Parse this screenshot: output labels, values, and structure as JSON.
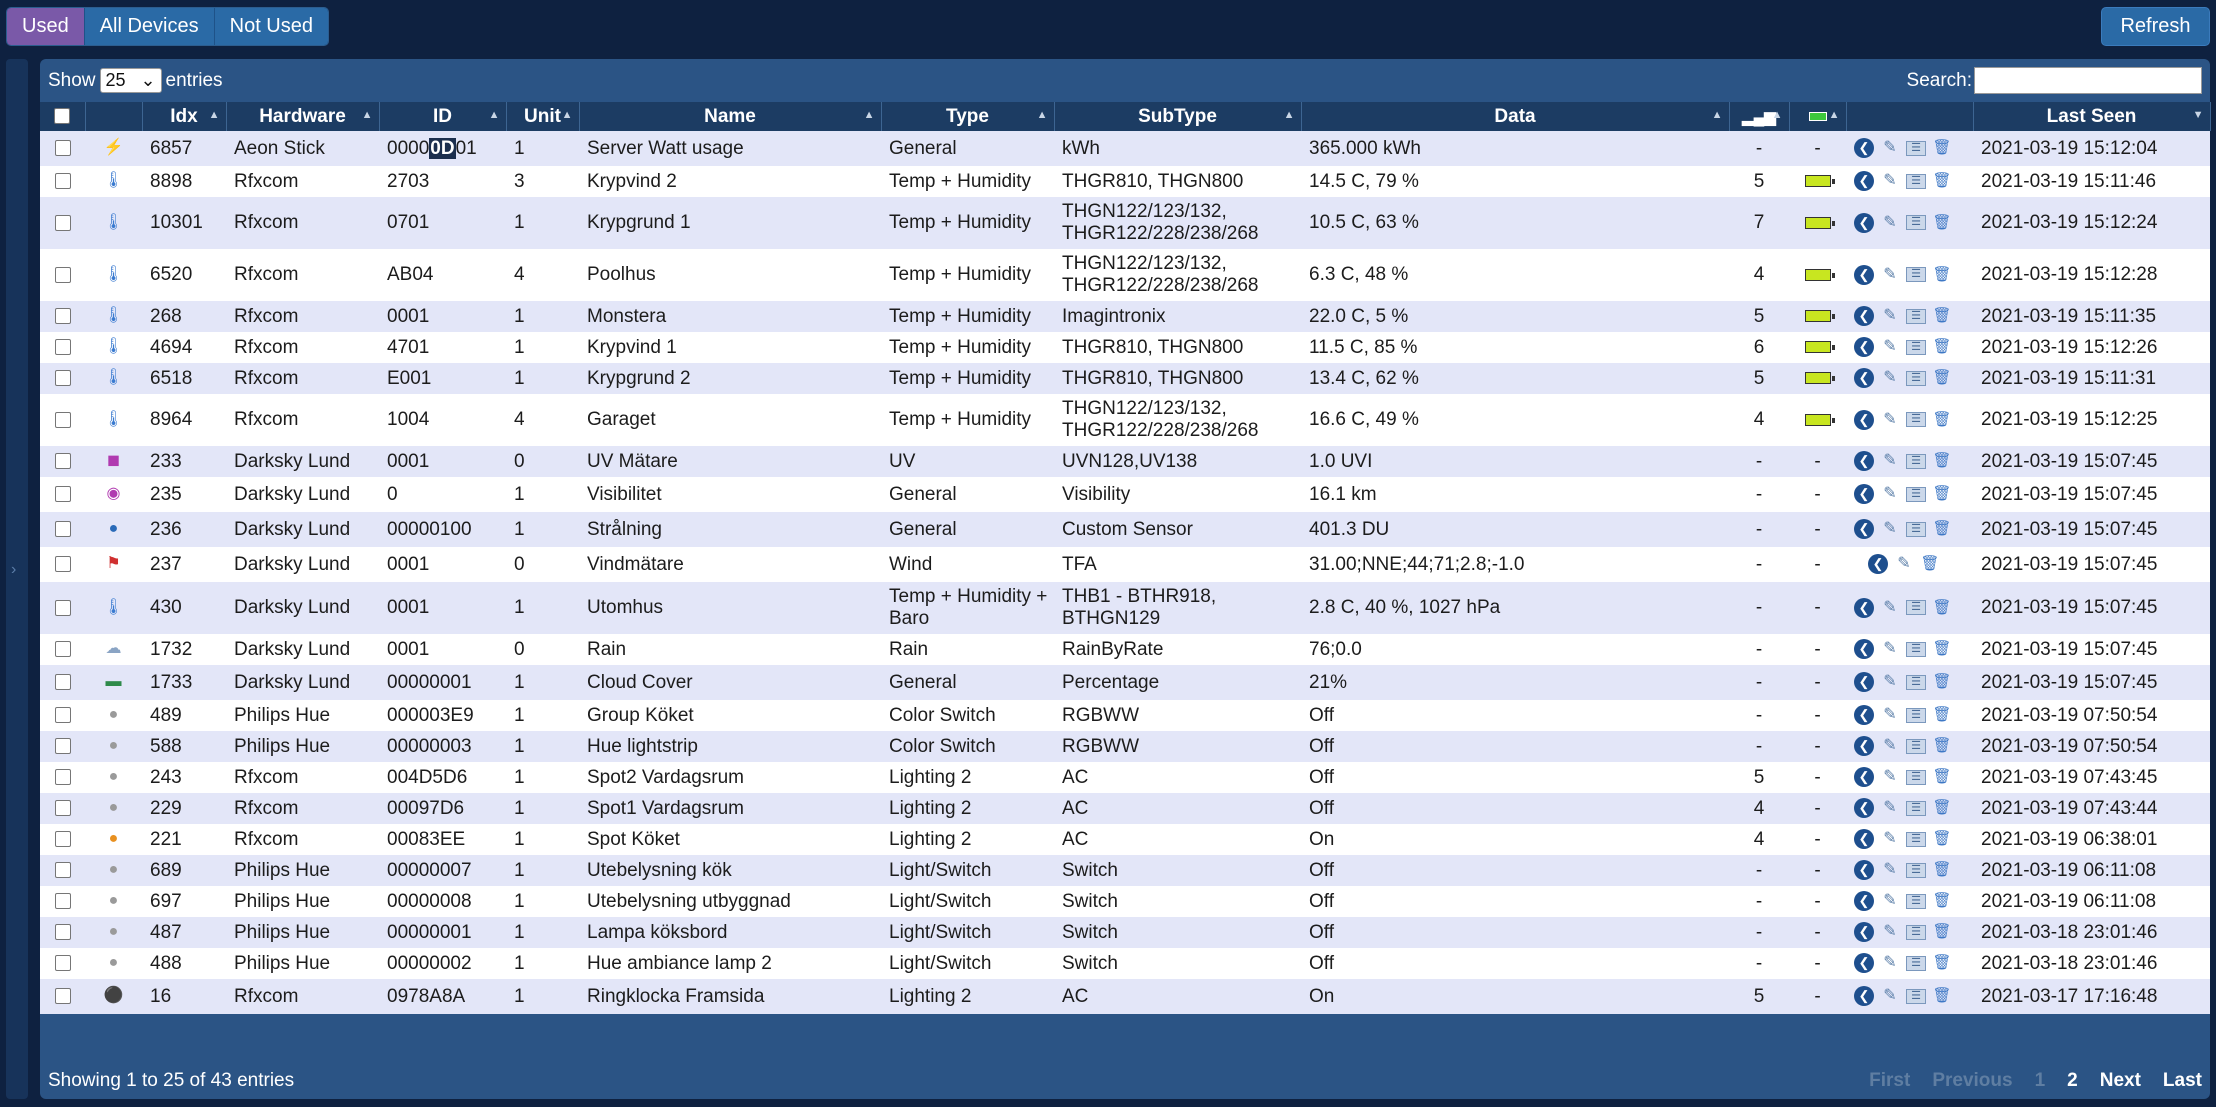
{
  "filters": {
    "used": "Used",
    "all_devices": "All Devices",
    "not_used": "Not Used"
  },
  "refresh_label": "Refresh",
  "length": {
    "show": "Show",
    "value": "25",
    "entries": "entries"
  },
  "search": {
    "label": "Search:",
    "value": ""
  },
  "columns": {
    "idx": "Idx",
    "hardware": "Hardware",
    "id": "ID",
    "unit": "Unit",
    "name": "Name",
    "type": "Type",
    "subtype": "SubType",
    "data": "Data",
    "last_seen": "Last Seen"
  },
  "rows": [
    {
      "idx": "6857",
      "hardware": "Aeon Stick",
      "id": "00000D01",
      "unit": "1",
      "name": "Server Watt usage",
      "type": "General",
      "subtype": "kWh",
      "data": "365.000 kWh",
      "signal": "-",
      "battery": "-",
      "last_seen": "2021-03-19 15:12:04"
    },
    {
      "idx": "8898",
      "hardware": "Rfxcom",
      "id": "2703",
      "unit": "3",
      "name": "Krypvind 2",
      "type": "Temp + Humidity",
      "subtype": "THGR810, THGN800",
      "data": "14.5 C, 79 %",
      "signal": "5",
      "battery": "bar",
      "last_seen": "2021-03-19 15:11:46"
    },
    {
      "idx": "10301",
      "hardware": "Rfxcom",
      "id": "0701",
      "unit": "1",
      "name": "Krypgrund 1",
      "type": "Temp + Humidity",
      "subtype": "THGN122/123/132, THGR122/228/238/268",
      "data": "10.5 C, 63 %",
      "signal": "7",
      "battery": "bar",
      "last_seen": "2021-03-19 15:12:24"
    },
    {
      "idx": "6520",
      "hardware": "Rfxcom",
      "id": "AB04",
      "unit": "4",
      "name": "Poolhus",
      "type": "Temp + Humidity",
      "subtype": "THGN122/123/132, THGR122/228/238/268",
      "data": "6.3 C, 48 %",
      "signal": "4",
      "battery": "bar",
      "last_seen": "2021-03-19 15:12:28"
    },
    {
      "idx": "268",
      "hardware": "Rfxcom",
      "id": "0001",
      "unit": "1",
      "name": "Monstera",
      "type": "Temp + Humidity",
      "subtype": "Imagintronix",
      "data": "22.0 C, 5 %",
      "signal": "5",
      "battery": "bar",
      "last_seen": "2021-03-19 15:11:35"
    },
    {
      "idx": "4694",
      "hardware": "Rfxcom",
      "id": "4701",
      "unit": "1",
      "name": "Krypvind 1",
      "type": "Temp + Humidity",
      "subtype": "THGR810, THGN800",
      "data": "11.5 C, 85 %",
      "signal": "6",
      "battery": "bar",
      "last_seen": "2021-03-19 15:12:26"
    },
    {
      "idx": "6518",
      "hardware": "Rfxcom",
      "id": "E001",
      "unit": "1",
      "name": "Krypgrund 2",
      "type": "Temp + Humidity",
      "subtype": "THGR810, THGN800",
      "data": "13.4 C, 62 %",
      "signal": "5",
      "battery": "bar",
      "last_seen": "2021-03-19 15:11:31"
    },
    {
      "idx": "8964",
      "hardware": "Rfxcom",
      "id": "1004",
      "unit": "4",
      "name": "Garaget",
      "type": "Temp + Humidity",
      "subtype": "THGN122/123/132, THGR122/228/238/268",
      "data": "16.6 C, 49 %",
      "signal": "4",
      "battery": "bar",
      "last_seen": "2021-03-19 15:12:25"
    },
    {
      "idx": "233",
      "hardware": "Darksky Lund",
      "id": "0001",
      "unit": "0",
      "name": "UV Mätare",
      "type": "UV",
      "subtype": "UVN128,UV138",
      "data": "1.0 UVI",
      "signal": "-",
      "battery": "-",
      "last_seen": "2021-03-19 15:07:45"
    },
    {
      "idx": "235",
      "hardware": "Darksky Lund",
      "id": "0",
      "unit": "1",
      "name": "Visibilitet",
      "type": "General",
      "subtype": "Visibility",
      "data": "16.1 km",
      "signal": "-",
      "battery": "-",
      "last_seen": "2021-03-19 15:07:45"
    },
    {
      "idx": "236",
      "hardware": "Darksky Lund",
      "id": "00000100",
      "unit": "1",
      "name": "Strålning",
      "type": "General",
      "subtype": "Custom Sensor",
      "data": "401.3 DU",
      "signal": "-",
      "battery": "-",
      "last_seen": "2021-03-19 15:07:45"
    },
    {
      "idx": "237",
      "hardware": "Darksky Lund",
      "id": "0001",
      "unit": "0",
      "name": "Vindmätare",
      "type": "Wind",
      "subtype": "TFA",
      "data": "31.00;NNE;44;71;2.8;-1.0",
      "signal": "-",
      "battery": "-",
      "last_seen": "2021-03-19 15:07:45"
    },
    {
      "idx": "430",
      "hardware": "Darksky Lund",
      "id": "0001",
      "unit": "1",
      "name": "Utomhus",
      "type": "Temp + Humidity + Baro",
      "subtype": "THB1 - BTHR918, BTHGN129",
      "data": "2.8 C, 40 %, 1027 hPa",
      "signal": "-",
      "battery": "-",
      "last_seen": "2021-03-19 15:07:45"
    },
    {
      "idx": "1732",
      "hardware": "Darksky Lund",
      "id": "0001",
      "unit": "0",
      "name": "Rain",
      "type": "Rain",
      "subtype": "RainByRate",
      "data": "76;0.0",
      "signal": "-",
      "battery": "-",
      "last_seen": "2021-03-19 15:07:45"
    },
    {
      "idx": "1733",
      "hardware": "Darksky Lund",
      "id": "00000001",
      "unit": "1",
      "name": "Cloud Cover",
      "type": "General",
      "subtype": "Percentage",
      "data": "21%",
      "signal": "-",
      "battery": "-",
      "last_seen": "2021-03-19 15:07:45"
    },
    {
      "idx": "489",
      "hardware": "Philips Hue",
      "id": "000003E9",
      "unit": "1",
      "name": "Group Köket",
      "type": "Color Switch",
      "subtype": "RGBWW",
      "data": "Off",
      "signal": "-",
      "battery": "-",
      "last_seen": "2021-03-19 07:50:54"
    },
    {
      "idx": "588",
      "hardware": "Philips Hue",
      "id": "00000003",
      "unit": "1",
      "name": "Hue lightstrip",
      "type": "Color Switch",
      "subtype": "RGBWW",
      "data": "Off",
      "signal": "-",
      "battery": "-",
      "last_seen": "2021-03-19 07:50:54"
    },
    {
      "idx": "243",
      "hardware": "Rfxcom",
      "id": "004D5D6",
      "unit": "1",
      "name": "Spot2 Vardagsrum",
      "type": "Lighting 2",
      "subtype": "AC",
      "data": "Off",
      "signal": "5",
      "battery": "-",
      "last_seen": "2021-03-19 07:43:45"
    },
    {
      "idx": "229",
      "hardware": "Rfxcom",
      "id": "00097D6",
      "unit": "1",
      "name": "Spot1 Vardagsrum",
      "type": "Lighting 2",
      "subtype": "AC",
      "data": "Off",
      "signal": "4",
      "battery": "-",
      "last_seen": "2021-03-19 07:43:44"
    },
    {
      "idx": "221",
      "hardware": "Rfxcom",
      "id": "00083EE",
      "unit": "1",
      "name": "Spot Köket",
      "type": "Lighting 2",
      "subtype": "AC",
      "data": "On",
      "signal": "4",
      "battery": "-",
      "last_seen": "2021-03-19 06:38:01"
    },
    {
      "idx": "689",
      "hardware": "Philips Hue",
      "id": "00000007",
      "unit": "1",
      "name": "Utebelysning kök",
      "type": "Light/Switch",
      "subtype": "Switch",
      "data": "Off",
      "signal": "-",
      "battery": "-",
      "last_seen": "2021-03-19 06:11:08"
    },
    {
      "idx": "697",
      "hardware": "Philips Hue",
      "id": "00000008",
      "unit": "1",
      "name": "Utebelysning utbyggnad",
      "type": "Light/Switch",
      "subtype": "Switch",
      "data": "Off",
      "signal": "-",
      "battery": "-",
      "last_seen": "2021-03-19 06:11:08"
    },
    {
      "idx": "487",
      "hardware": "Philips Hue",
      "id": "00000001",
      "unit": "1",
      "name": "Lampa köksbord",
      "type": "Light/Switch",
      "subtype": "Switch",
      "data": "Off",
      "signal": "-",
      "battery": "-",
      "last_seen": "2021-03-18 23:01:46"
    },
    {
      "idx": "488",
      "hardware": "Philips Hue",
      "id": "00000002",
      "unit": "1",
      "name": "Hue ambiance lamp 2",
      "type": "Light/Switch",
      "subtype": "Switch",
      "data": "Off",
      "signal": "-",
      "battery": "-",
      "last_seen": "2021-03-18 23:01:46"
    },
    {
      "idx": "16",
      "hardware": "Rfxcom",
      "id": "0978A8A",
      "unit": "1",
      "name": "Ringklocka Framsida",
      "type": "Lighting 2",
      "subtype": "AC",
      "data": "On",
      "signal": "5",
      "battery": "-",
      "last_seen": "2021-03-17 17:16:48"
    }
  ],
  "info": "Showing 1 to 25 of 43 entries",
  "pager": {
    "first": "First",
    "previous": "Previous",
    "page1": "1",
    "page2": "2",
    "next": "Next",
    "last": "Last"
  },
  "colors": {
    "background": "#0e2140",
    "panel": "#2b5485",
    "header": "#1c3c63",
    "row_alt": "#e3e6f8",
    "used_button": "#7a59a8",
    "button": "#2a6aa6"
  }
}
